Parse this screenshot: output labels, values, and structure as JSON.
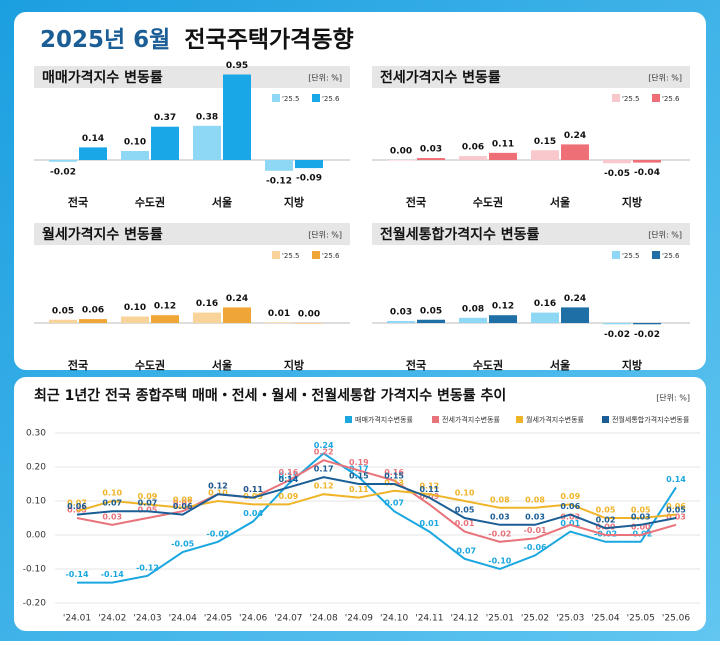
{
  "header": {
    "date": "2025년 6월",
    "title": "전국주택가격동향"
  },
  "chart_data": [
    {
      "type": "bar",
      "title": "매매가격지수 변동률",
      "unit": "[단위: %]",
      "categories": [
        "전국",
        "수도권",
        "서울",
        "지방"
      ],
      "series": [
        {
          "name": "'25.5",
          "color": "#8fd8f5",
          "values": [
            -0.02,
            0.1,
            0.38,
            -0.12
          ],
          "value_labels": [
            "-0.02",
            "0.10",
            "0.38",
            "-0.12"
          ]
        },
        {
          "name": "'25.6",
          "color": "#1aa7e8",
          "values": [
            0.14,
            0.37,
            0.95,
            -0.09
          ],
          "value_labels": [
            "0.14",
            "0.37",
            "0.95",
            "-0.09"
          ]
        }
      ]
    },
    {
      "type": "bar",
      "title": "전세가격지수 변동률",
      "unit": "[단위: %]",
      "categories": [
        "전국",
        "수도권",
        "서울",
        "지방"
      ],
      "series": [
        {
          "name": "'25.5",
          "color": "#f8c8cc",
          "values": [
            0,
            0.06,
            0.15,
            -0.05
          ],
          "value_labels": [
            "0.00",
            "0.06",
            "0.15",
            "-0.05"
          ]
        },
        {
          "name": "'25.6",
          "color": "#ef6f77",
          "values": [
            0.03,
            0.11,
            0.24,
            -0.04
          ],
          "value_labels": [
            "0.03",
            "0.11",
            "0.24",
            "-0.04"
          ]
        }
      ]
    },
    {
      "type": "bar",
      "title": "월세가격지수 변동률",
      "unit": "[단위: %]",
      "categories": [
        "전국",
        "수도권",
        "서울",
        "지방"
      ],
      "series": [
        {
          "name": "'25.5",
          "color": "#f9d49a",
          "values": [
            0.05,
            0.1,
            0.16,
            0.01
          ],
          "value_labels": [
            "0.05",
            "0.10",
            "0.16",
            "0.01"
          ]
        },
        {
          "name": "'25.6",
          "color": "#f0a636",
          "values": [
            0.06,
            0.12,
            0.24,
            0
          ],
          "value_labels": [
            "0.06",
            "0.12",
            "0.24",
            "0.00"
          ]
        }
      ]
    },
    {
      "type": "bar",
      "title": "전월세통합가격지수 변동률",
      "unit": "[단위: %]",
      "categories": [
        "전국",
        "수도권",
        "서울",
        "지방"
      ],
      "series": [
        {
          "name": "'25.5",
          "color": "#8fd8f5",
          "values": [
            0.03,
            0.08,
            0.16,
            -0.02
          ],
          "value_labels": [
            "0.03",
            "0.08",
            "0.16",
            "-0.02"
          ]
        },
        {
          "name": "'25.6",
          "color": "#1d6fa5",
          "values": [
            0.05,
            0.12,
            0.24,
            -0.02
          ],
          "value_labels": [
            "0.05",
            "0.12",
            "0.24",
            "-0.02"
          ]
        }
      ]
    },
    {
      "type": "line",
      "title": "최근 1년간 전국 종합주택 매매・전세・월세・전월세통합 가격지수 변동률 추이",
      "unit": "[단위: %]",
      "categories": [
        "'24.01",
        "'24.02",
        "'24.03",
        "'24.04",
        "'24.05",
        "'24.06",
        "'24.07",
        "'24.08",
        "'24.09",
        "'24.10",
        "'24.11",
        "'24.12",
        "'25.01",
        "'25.02",
        "'25.03",
        "'25.04",
        "'25.05",
        "'25.06"
      ],
      "ylim": [
        -0.2,
        0.3
      ],
      "yticks": [
        {
          "value": -0.2,
          "label": "-0.20"
        },
        {
          "value": -0.1,
          "label": "-0.10"
        },
        {
          "value": 0,
          "label": "0.00"
        },
        {
          "value": 0.1,
          "label": "0.10"
        },
        {
          "value": 0.2,
          "label": "0.20"
        },
        {
          "value": 0.3,
          "label": "0.30"
        }
      ],
      "series": [
        {
          "name": "매매가격지수변동률",
          "color": "#1aa7e0",
          "values": [
            -0.14,
            -0.14,
            -0.12,
            -0.05,
            -0.02,
            0.04,
            0.15,
            0.24,
            0.17,
            0.07,
            0.01,
            -0.07,
            -0.1,
            -0.06,
            0.01,
            -0.02,
            -0.02,
            0.14
          ],
          "value_labels": [
            "-0.14",
            "-0.14",
            "-0.12",
            "-0.05",
            "-0.02",
            "0.04",
            "0.15",
            "0.24",
            "0.17",
            "0.07",
            "0.01",
            "-0.07",
            "-0.10",
            "-0.06",
            "0.01",
            "-0.02",
            "-0.02",
            "0.14"
          ]
        },
        {
          "name": "전세가격지수변동률",
          "color": "#e9737b",
          "values": [
            0.05,
            0.03,
            0.05,
            0.07,
            0.12,
            0.11,
            0.16,
            0.22,
            0.19,
            0.16,
            0.09,
            0.01,
            -0.02,
            -0.01,
            0.03,
            0,
            0,
            0.03
          ],
          "value_labels": [
            "0.05",
            "0.03",
            "0.05",
            "0.07",
            "0.12",
            "0.11",
            "0.16",
            "0.22",
            "0.19",
            "0.16",
            "0.09",
            "0.01",
            "-0.02",
            "-0.01",
            "0.03",
            "0.00",
            "0.00",
            "0.03"
          ]
        },
        {
          "name": "월세가격지수변동률",
          "color": "#f0b429",
          "values": [
            0.07,
            0.1,
            0.09,
            0.08,
            0.1,
            0.09,
            0.09,
            0.12,
            0.11,
            0.13,
            0.12,
            0.1,
            0.08,
            0.08,
            0.09,
            0.05,
            0.05,
            0.06
          ],
          "value_labels": [
            "0.07",
            "0.10",
            "0.09",
            "0.08",
            "0.10",
            "0.09",
            "0.09",
            "0.12",
            "0.11",
            "0.13",
            "0.12",
            "0.10",
            "0.08",
            "0.08",
            "0.09",
            "0.05",
            "0.05",
            "0.06"
          ]
        },
        {
          "name": "전월세통합가격지수변동률",
          "color": "#1b5e96",
          "values": [
            0.06,
            0.07,
            0.07,
            0.06,
            0.12,
            0.11,
            0.14,
            0.17,
            0.15,
            0.15,
            0.11,
            0.05,
            0.03,
            0.03,
            0.06,
            0.02,
            0.03,
            0.05
          ],
          "value_labels": [
            "0.06",
            "0.07",
            "0.07",
            "0.06",
            "0.12",
            "0.11",
            "0.14",
            "0.17",
            "0.15",
            "0.15",
            "0.11",
            "0.05",
            "0.03",
            "0.03",
            "0.06",
            "0.02",
            "0.03",
            "0.05"
          ]
        }
      ]
    }
  ]
}
